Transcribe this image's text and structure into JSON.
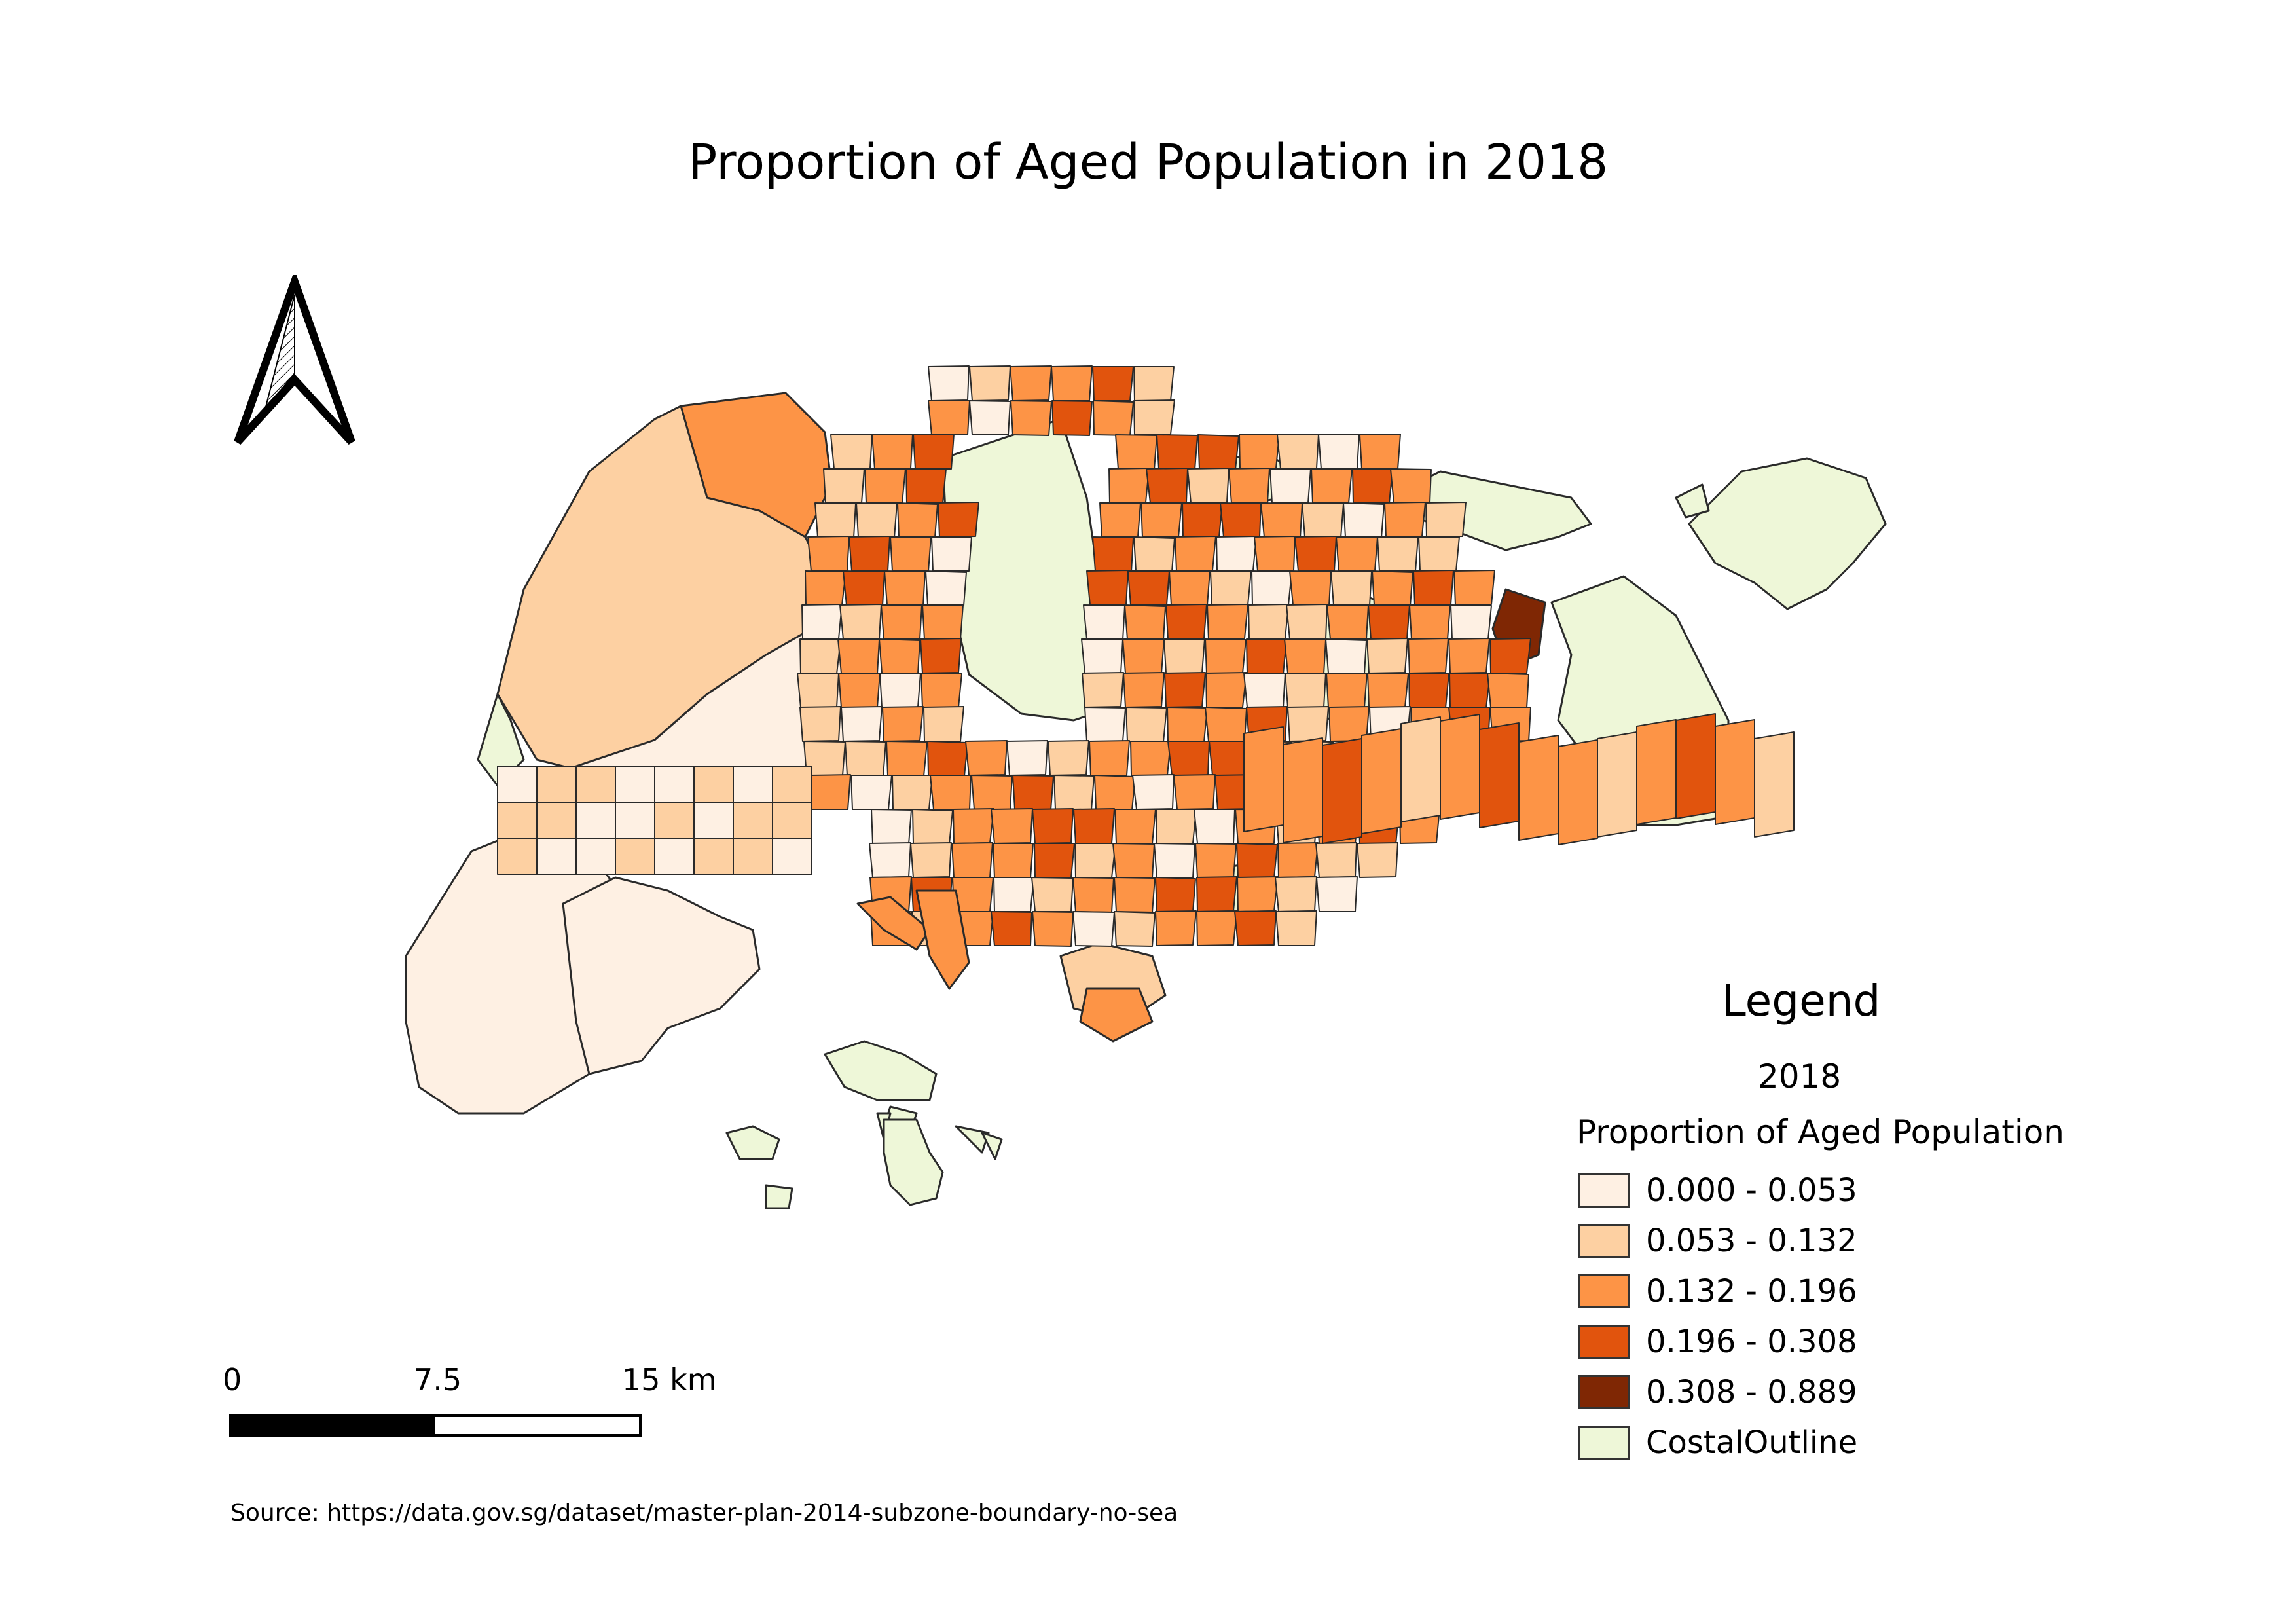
{
  "title": "Proportion of Aged Population in 2018",
  "legend": {
    "title": "Legend",
    "subtitle": "2018",
    "group_label": "Proportion of Aged Population",
    "items": [
      {
        "label": "0.000 - 0.053",
        "color": "#fef0e3"
      },
      {
        "label": "0.053 - 0.132",
        "color": "#fdd0a2"
      },
      {
        "label": "0.132 - 0.196",
        "color": "#fd9446"
      },
      {
        "label": "0.196 - 0.308",
        "color": "#e1540d"
      },
      {
        "label": "0.308 - 0.889",
        "color": "#7f2704"
      },
      {
        "label": "CostalOutline",
        "color": "#eef7d8"
      }
    ]
  },
  "scalebar": {
    "labels": [
      "0",
      "7.5",
      "15 km"
    ],
    "segment_colors": [
      "#000000",
      "#ffffff"
    ]
  },
  "north_arrow": {
    "icon": "north-arrow-icon"
  },
  "source": "Source: https://data.gov.sg/dataset/master-plan-2014-subzone-boundary-no-sea"
}
